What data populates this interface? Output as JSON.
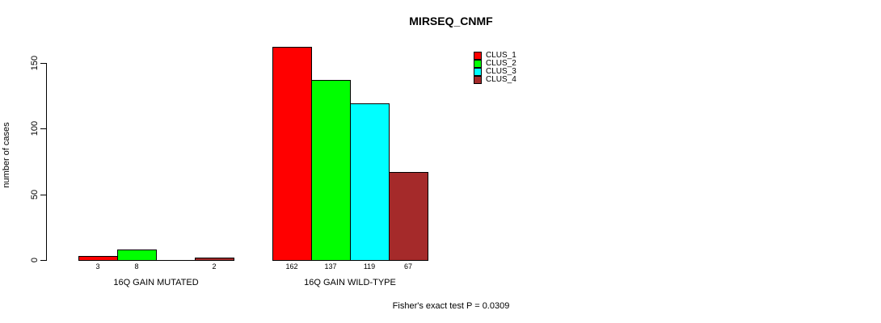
{
  "title": "MIRSEQ_CNMF",
  "y_axis": {
    "label": "number of cases",
    "ticks": [
      0,
      50,
      100,
      150
    ]
  },
  "footnote": "Fisher's exact test P = 0.0309",
  "chart_data": {
    "type": "bar",
    "title": "MIRSEQ_CNMF",
    "xlabel": "",
    "ylabel": "number of cases",
    "ylim": [
      0,
      150
    ],
    "grid": false,
    "legend_position": "top-right",
    "categories": [
      "16Q GAIN MUTATED",
      "16Q GAIN WILD-TYPE"
    ],
    "series": [
      {
        "name": "CLUS_1",
        "color": "#ff0000",
        "values": [
          3,
          162
        ],
        "labels": [
          "3",
          "162"
        ]
      },
      {
        "name": "CLUS_2",
        "color": "#00ff00",
        "values": [
          8,
          137
        ],
        "labels": [
          "8",
          "137"
        ]
      },
      {
        "name": "CLUS_3",
        "color": "#00ffff",
        "values": [
          0,
          119
        ],
        "labels": [
          "",
          "119"
        ]
      },
      {
        "name": "CLUS_4",
        "color": "#a52a2a",
        "values": [
          2,
          67
        ],
        "labels": [
          "2",
          "67"
        ]
      }
    ],
    "annotation": "Fisher's exact test P = 0.0309"
  },
  "legend": {
    "items": [
      {
        "label": "CLUS_1",
        "color": "#ff0000"
      },
      {
        "label": "CLUS_2",
        "color": "#00ff00"
      },
      {
        "label": "CLUS_3",
        "color": "#00ffff"
      },
      {
        "label": "CLUS_4",
        "color": "#a52a2a"
      }
    ]
  }
}
